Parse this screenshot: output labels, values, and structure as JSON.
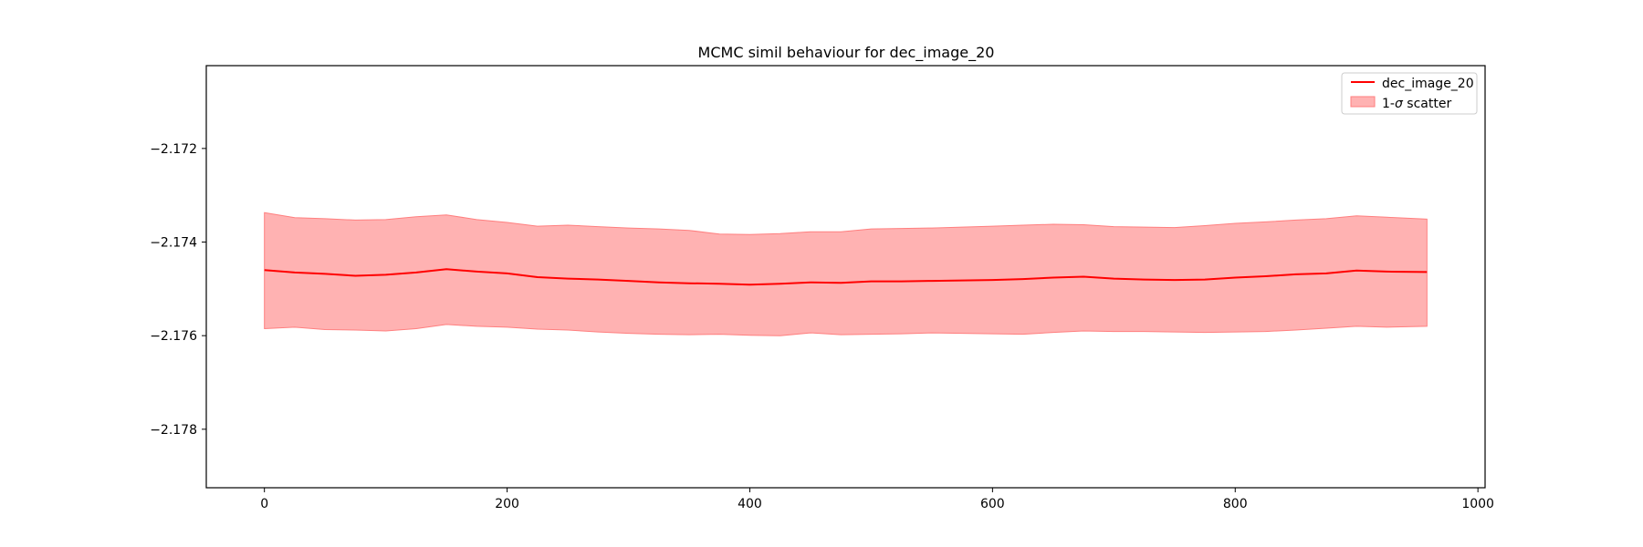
{
  "chart_data": {
    "type": "line",
    "title": "MCMC simil behaviour for dec_image_20",
    "xlabel": "",
    "ylabel": "",
    "xlim": [
      -47.9,
      1005.9
    ],
    "ylim": [
      -2.17925,
      -2.17023
    ],
    "xticks": [
      0,
      200,
      400,
      600,
      800,
      1000
    ],
    "xtick_labels": [
      "0",
      "200",
      "400",
      "600",
      "800",
      "1000"
    ],
    "yticks": [
      -2.178,
      -2.176,
      -2.174,
      -2.172
    ],
    "ytick_labels": [
      "−2.178",
      "−2.176",
      "−2.174",
      "−2.172"
    ],
    "grid": false,
    "legend_position": "top-right",
    "legend": {
      "line_label": "dec_image_20",
      "band_label_prefix": "1-",
      "band_label_symbol": "σ",
      "band_label_suffix": " scatter"
    },
    "series": [
      {
        "name": "dec_image_20",
        "kind": "line",
        "color": "#ff0000",
        "x": [
          0,
          25,
          50,
          75,
          100,
          125,
          150,
          175,
          200,
          225,
          250,
          275,
          300,
          325,
          350,
          375,
          400,
          425,
          450,
          475,
          500,
          525,
          550,
          575,
          600,
          625,
          650,
          675,
          700,
          725,
          750,
          775,
          800,
          825,
          850,
          875,
          900,
          925,
          958
        ],
        "y": [
          -2.1746,
          -2.17465,
          -2.17468,
          -2.17472,
          -2.1747,
          -2.17465,
          -2.17458,
          -2.17463,
          -2.17467,
          -2.17475,
          -2.17478,
          -2.1748,
          -2.17483,
          -2.17486,
          -2.17488,
          -2.17489,
          -2.17491,
          -2.17489,
          -2.17486,
          -2.17487,
          -2.17484,
          -2.17484,
          -2.17483,
          -2.17482,
          -2.17481,
          -2.17479,
          -2.17476,
          -2.17474,
          -2.17478,
          -2.1748,
          -2.17481,
          -2.1748,
          -2.17476,
          -2.17473,
          -2.17469,
          -2.17467,
          -2.17461,
          -2.17463,
          -2.17464
        ]
      },
      {
        "name": "1-σ scatter",
        "kind": "band",
        "color": "#ff7f7f",
        "x": [
          0,
          25,
          50,
          75,
          100,
          125,
          150,
          175,
          200,
          225,
          250,
          275,
          300,
          325,
          350,
          375,
          400,
          425,
          450,
          475,
          500,
          525,
          550,
          575,
          600,
          625,
          650,
          675,
          700,
          725,
          750,
          775,
          800,
          825,
          850,
          875,
          900,
          925,
          958
        ],
        "upper": [
          -2.17337,
          -2.17348,
          -2.1735,
          -2.17353,
          -2.17352,
          -2.17346,
          -2.17342,
          -2.17352,
          -2.17358,
          -2.17366,
          -2.17364,
          -2.17367,
          -2.1737,
          -2.17372,
          -2.17375,
          -2.17383,
          -2.17384,
          -2.17382,
          -2.17378,
          -2.17378,
          -2.17372,
          -2.17371,
          -2.1737,
          -2.17368,
          -2.17366,
          -2.17364,
          -2.17362,
          -2.17363,
          -2.17367,
          -2.17368,
          -2.17369,
          -2.17365,
          -2.1736,
          -2.17357,
          -2.17353,
          -2.1735,
          -2.17344,
          -2.17347,
          -2.17351
        ],
        "lower": [
          -2.17585,
          -2.17582,
          -2.17587,
          -2.17588,
          -2.1759,
          -2.17585,
          -2.17576,
          -2.1758,
          -2.17582,
          -2.17586,
          -2.17588,
          -2.17592,
          -2.17595,
          -2.17597,
          -2.17598,
          -2.17597,
          -2.17599,
          -2.176,
          -2.17594,
          -2.17598,
          -2.17597,
          -2.17596,
          -2.17594,
          -2.17595,
          -2.17596,
          -2.17597,
          -2.17593,
          -2.1759,
          -2.17591,
          -2.17591,
          -2.17592,
          -2.17593,
          -2.17592,
          -2.17591,
          -2.17588,
          -2.17584,
          -2.1758,
          -2.17582,
          -2.1758
        ]
      }
    ]
  }
}
